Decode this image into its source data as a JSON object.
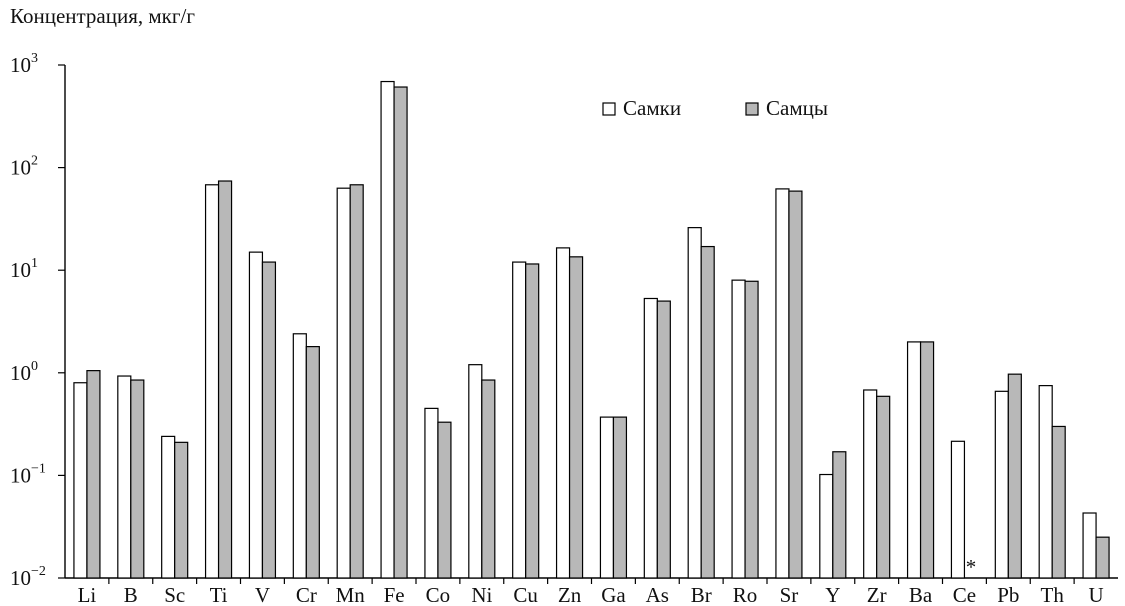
{
  "chart_data": {
    "type": "bar",
    "ylabel": "Концентрация, мкг/г",
    "yscale": "log",
    "ylim": [
      0.01,
      1000
    ],
    "yticks": [
      {
        "value": 0.01,
        "base": "10",
        "exp": "−2"
      },
      {
        "value": 0.1,
        "base": "10",
        "exp": "−1"
      },
      {
        "value": 1,
        "base": "10",
        "exp": "0"
      },
      {
        "value": 10,
        "base": "10",
        "exp": "1"
      },
      {
        "value": 100,
        "base": "10",
        "exp": "2"
      },
      {
        "value": 1000,
        "base": "10",
        "exp": "3"
      }
    ],
    "categories": [
      "Li",
      "B",
      "Sc",
      "Ti",
      "V",
      "Cr",
      "Mn",
      "Fe",
      "Co",
      "Ni",
      "Cu",
      "Zn",
      "Ga",
      "As",
      "Br",
      "Ro",
      "Sr",
      "Y",
      "Zr",
      "Ba",
      "Ce",
      "Pb",
      "Th",
      "U"
    ],
    "series": [
      {
        "name": "Самки",
        "color": "#ffffff",
        "values": [
          0.8,
          0.93,
          0.24,
          68,
          15,
          2.4,
          63,
          690,
          0.45,
          1.2,
          12,
          16.5,
          0.37,
          5.3,
          26,
          8,
          62,
          0.102,
          0.68,
          2,
          0.215,
          0.66,
          0.75,
          0.043
        ]
      },
      {
        "name": "Самцы",
        "color": "#b8b8b8",
        "values": [
          1.05,
          0.85,
          0.21,
          74,
          12,
          1.8,
          68,
          610,
          0.33,
          0.85,
          11.5,
          13.5,
          0.37,
          5,
          17,
          7.8,
          59,
          0.17,
          0.59,
          2,
          null,
          0.97,
          0.3,
          0.025
        ]
      }
    ],
    "annotations": [
      {
        "category": "Ce",
        "text": "*"
      }
    ],
    "legend": {
      "position": "top-right"
    },
    "grid": false
  }
}
